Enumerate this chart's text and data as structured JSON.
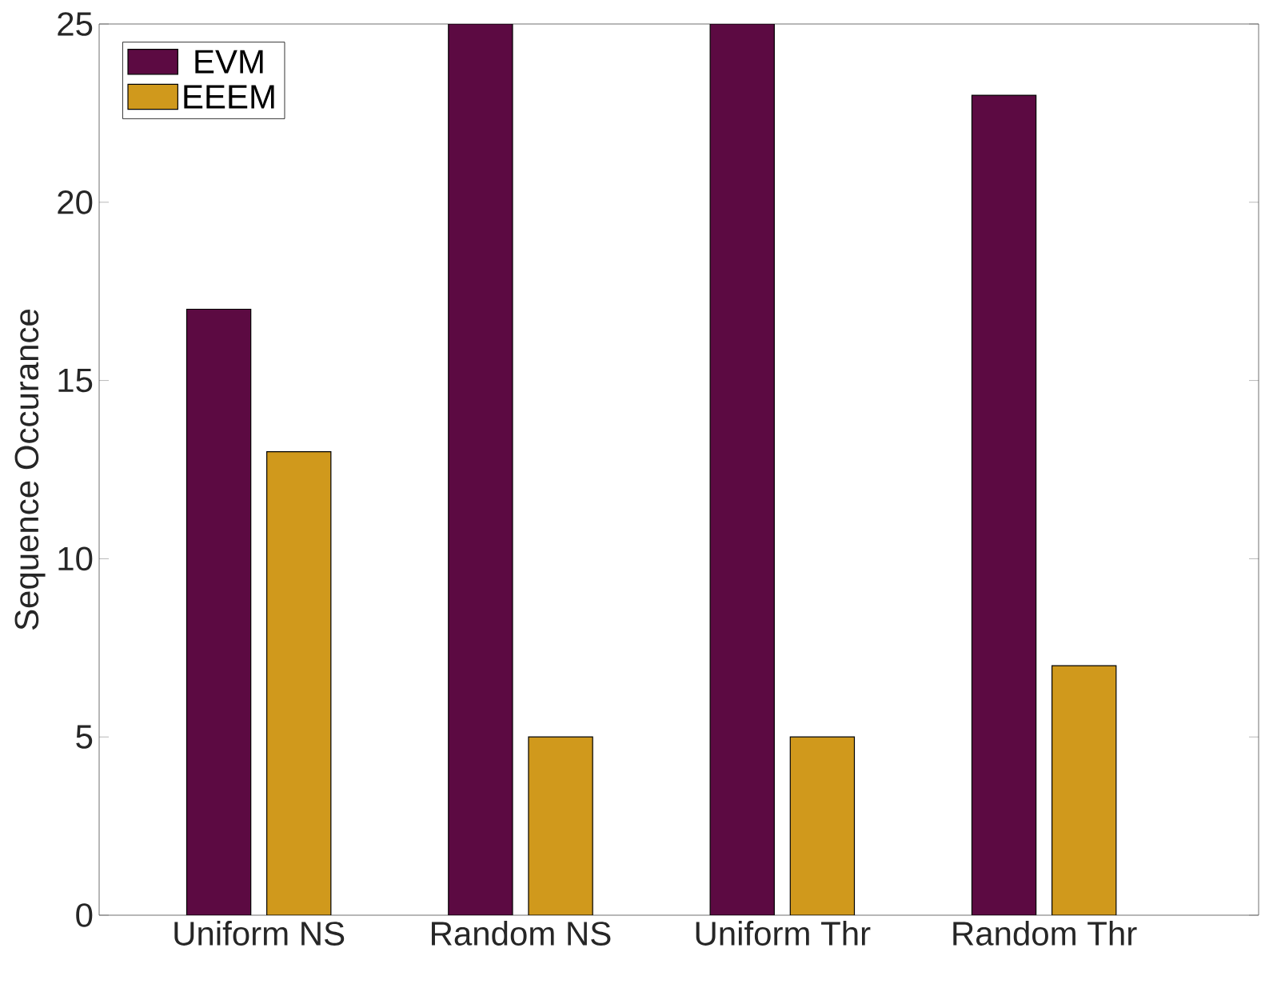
{
  "chart_data": {
    "type": "bar",
    "ylabel": "Sequence Occurance",
    "categories": [
      "Uniform NS",
      "Random NS",
      "Uniform Thr",
      "Random Thr"
    ],
    "series": [
      {
        "name": "EVM",
        "color": "#5c0a42",
        "values": [
          17,
          25,
          25,
          23
        ]
      },
      {
        "name": "EEEM",
        "color": "#d0991c",
        "values": [
          13,
          5,
          5,
          7
        ]
      }
    ],
    "ylim": [
      0,
      25
    ],
    "yticks": [
      0,
      5,
      10,
      15,
      20,
      25
    ],
    "legend": "top left"
  }
}
